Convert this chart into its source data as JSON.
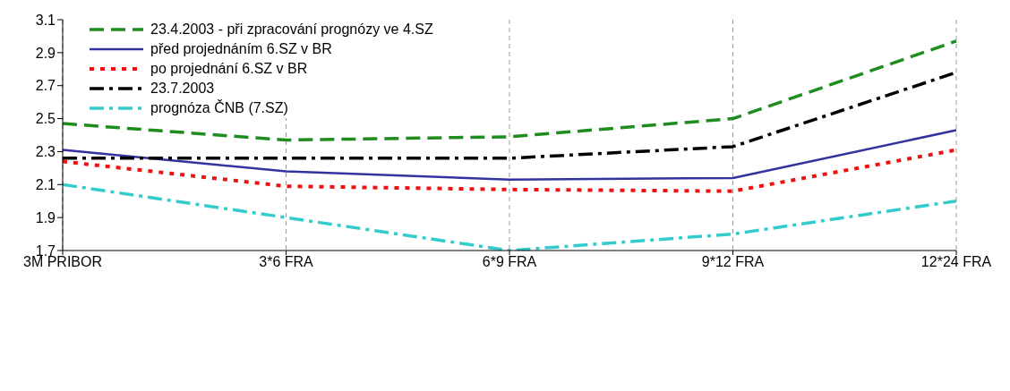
{
  "chart_data": {
    "type": "line",
    "categories": [
      "3M PRIBOR",
      "3*6 FRA",
      "6*9 FRA",
      "9*12 FRA",
      "12*24 FRA"
    ],
    "series": [
      {
        "name": "23.4.2003 - při zpracování prognózy ve 4.SZ",
        "color": "#1e8c1e",
        "line_style": "dashed",
        "values": [
          2.47,
          2.37,
          2.39,
          2.5,
          2.97
        ]
      },
      {
        "name": "před projednáním 6.SZ v BR",
        "color": "#3333a0",
        "line_style": "solid",
        "values": [
          2.31,
          2.18,
          2.13,
          2.14,
          2.43
        ]
      },
      {
        "name": "po projednání 6.SZ v BR",
        "color": "#ee1111",
        "line_style": "dotted",
        "values": [
          2.24,
          2.09,
          2.07,
          2.06,
          2.31
        ]
      },
      {
        "name": "23.7.2003",
        "color": "#000000",
        "line_style": "dashdot",
        "values": [
          2.26,
          2.26,
          2.26,
          2.33,
          2.78
        ]
      },
      {
        "name": "prognóza ČNB (7.SZ)",
        "color": "#33cccc",
        "line_style": "dashdot",
        "values": [
          2.1,
          1.9,
          1.7,
          1.8,
          2.0
        ]
      }
    ],
    "ylim": [
      1.7,
      3.1
    ],
    "yticks": [
      1.7,
      1.9,
      2.1,
      2.3,
      2.5,
      2.7,
      2.9,
      3.1
    ],
    "grid": "x",
    "legend": "top left",
    "marker": "none"
  }
}
